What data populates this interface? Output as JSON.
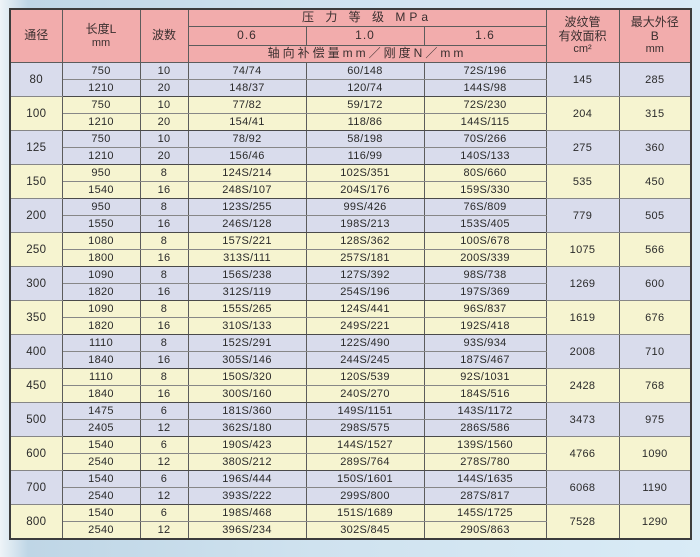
{
  "colors": {
    "header_bg": "#f2acac",
    "row_even": "#d9dcec",
    "row_odd": "#f6f4d0"
  },
  "header": {
    "col_diameter": "通径",
    "col_length": "长度L",
    "col_length_unit": "mm",
    "col_waves": "波数",
    "pressure_title": "压 力 等 级 MPa",
    "pressure_levels": [
      "0.6",
      "1.0",
      "1.6"
    ],
    "compensation_label": "轴向补偿量mm／刚度N／mm",
    "col_area_line1": "波纹管",
    "col_area_line2": "有效面积",
    "col_area_unit": "cm²",
    "col_od_line1": "最大外径",
    "col_od_line2": "B",
    "col_od_unit": "mm"
  },
  "rows": [
    {
      "dn": "80",
      "area": "145",
      "od": "285",
      "sub": [
        {
          "len": "750",
          "waves": "10",
          "p06": "74/74",
          "p10": "60/148",
          "p16": "72S/196"
        },
        {
          "len": "1210",
          "waves": "20",
          "p06": "148/37",
          "p10": "120/74",
          "p16": "144S/98"
        }
      ]
    },
    {
      "dn": "100",
      "area": "204",
      "od": "315",
      "sub": [
        {
          "len": "750",
          "waves": "10",
          "p06": "77/82",
          "p10": "59/172",
          "p16": "72S/230"
        },
        {
          "len": "1210",
          "waves": "20",
          "p06": "154/41",
          "p10": "118/86",
          "p16": "144S/115"
        }
      ]
    },
    {
      "dn": "125",
      "area": "275",
      "od": "360",
      "sub": [
        {
          "len": "750",
          "waves": "10",
          "p06": "78/92",
          "p10": "58/198",
          "p16": "70S/266"
        },
        {
          "len": "1210",
          "waves": "20",
          "p06": "156/46",
          "p10": "116/99",
          "p16": "140S/133"
        }
      ]
    },
    {
      "dn": "150",
      "area": "535",
      "od": "450",
      "sub": [
        {
          "len": "950",
          "waves": "8",
          "p06": "124S/214",
          "p10": "102S/351",
          "p16": "80S/660"
        },
        {
          "len": "1540",
          "waves": "16",
          "p06": "248S/107",
          "p10": "204S/176",
          "p16": "159S/330"
        }
      ]
    },
    {
      "dn": "200",
      "area": "779",
      "od": "505",
      "sub": [
        {
          "len": "950",
          "waves": "8",
          "p06": "123S/255",
          "p10": "99S/426",
          "p16": "76S/809"
        },
        {
          "len": "1550",
          "waves": "16",
          "p06": "246S/128",
          "p10": "198S/213",
          "p16": "153S/405"
        }
      ]
    },
    {
      "dn": "250",
      "area": "1075",
      "od": "566",
      "sub": [
        {
          "len": "1080",
          "waves": "8",
          "p06": "157S/221",
          "p10": "128S/362",
          "p16": "100S/678"
        },
        {
          "len": "1800",
          "waves": "16",
          "p06": "313S/111",
          "p10": "257S/181",
          "p16": "200S/339"
        }
      ]
    },
    {
      "dn": "300",
      "area": "1269",
      "od": "600",
      "sub": [
        {
          "len": "1090",
          "waves": "8",
          "p06": "156S/238",
          "p10": "127S/392",
          "p16": "98S/738"
        },
        {
          "len": "1820",
          "waves": "16",
          "p06": "312S/119",
          "p10": "254S/196",
          "p16": "197S/369"
        }
      ]
    },
    {
      "dn": "350",
      "area": "1619",
      "od": "676",
      "sub": [
        {
          "len": "1090",
          "waves": "8",
          "p06": "155S/265",
          "p10": "124S/441",
          "p16": "96S/837"
        },
        {
          "len": "1820",
          "waves": "16",
          "p06": "310S/133",
          "p10": "249S/221",
          "p16": "192S/418"
        }
      ]
    },
    {
      "dn": "400",
      "area": "2008",
      "od": "710",
      "sub": [
        {
          "len": "1110",
          "waves": "8",
          "p06": "152S/291",
          "p10": "122S/490",
          "p16": "93S/934"
        },
        {
          "len": "1840",
          "waves": "16",
          "p06": "305S/146",
          "p10": "244S/245",
          "p16": "187S/467"
        }
      ]
    },
    {
      "dn": "450",
      "area": "2428",
      "od": "768",
      "sub": [
        {
          "len": "1110",
          "waves": "8",
          "p06": "150S/320",
          "p10": "120S/539",
          "p16": "92S/1031"
        },
        {
          "len": "1840",
          "waves": "16",
          "p06": "300S/160",
          "p10": "240S/270",
          "p16": "184S/516"
        }
      ]
    },
    {
      "dn": "500",
      "area": "3473",
      "od": "975",
      "sub": [
        {
          "len": "1475",
          "waves": "6",
          "p06": "181S/360",
          "p10": "149S/1151",
          "p16": "143S/1172"
        },
        {
          "len": "2405",
          "waves": "12",
          "p06": "362S/180",
          "p10": "298S/575",
          "p16": "286S/586"
        }
      ]
    },
    {
      "dn": "600",
      "area": "4766",
      "od": "1090",
      "sub": [
        {
          "len": "1540",
          "waves": "6",
          "p06": "190S/423",
          "p10": "144S/1527",
          "p16": "139S/1560"
        },
        {
          "len": "2540",
          "waves": "12",
          "p06": "380S/212",
          "p10": "289S/764",
          "p16": "278S/780"
        }
      ]
    },
    {
      "dn": "700",
      "area": "6068",
      "od": "1190",
      "sub": [
        {
          "len": "1540",
          "waves": "6",
          "p06": "196S/444",
          "p10": "150S/1601",
          "p16": "144S/1635"
        },
        {
          "len": "2540",
          "waves": "12",
          "p06": "393S/222",
          "p10": "299S/800",
          "p16": "287S/817"
        }
      ]
    },
    {
      "dn": "800",
      "area": "7528",
      "od": "1290",
      "sub": [
        {
          "len": "1540",
          "waves": "6",
          "p06": "198S/468",
          "p10": "151S/1689",
          "p16": "145S/1725"
        },
        {
          "len": "2540",
          "waves": "12",
          "p06": "396S/234",
          "p10": "302S/845",
          "p16": "290S/863"
        }
      ]
    }
  ]
}
